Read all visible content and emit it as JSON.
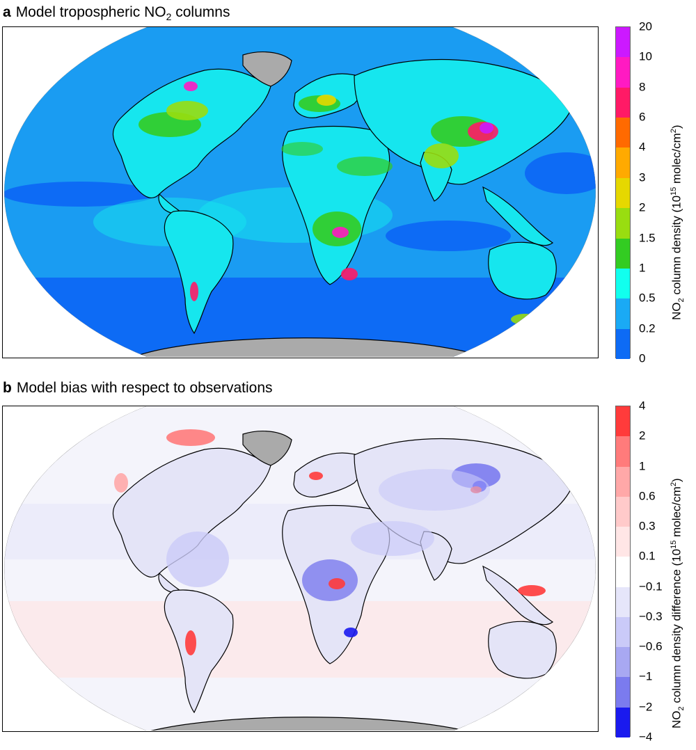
{
  "panel_a": {
    "letter": "a",
    "title": "Model tropospheric NO",
    "title_sub": "2",
    "title_tail": " columns",
    "colorbar": {
      "ticks": [
        "20",
        "10",
        "8",
        "6",
        "4",
        "3",
        "2",
        "1.5",
        "1",
        "0.5",
        "0.2",
        "0"
      ],
      "bin_colors": [
        "#cc19ff",
        "#ff1ac2",
        "#ff1a66",
        "#ff6a00",
        "#ffaa00",
        "#e6d800",
        "#99dd10",
        "#33cc22",
        "#11ffee",
        "#1aaaf5",
        "#0d6bf5"
      ],
      "label_pre": "NO",
      "label_sub": "2",
      "label_mid": " column density (10",
      "label_sup": "15",
      "label_mid2": " molec/cm",
      "label_sup2": "2",
      "label_end": ")"
    },
    "ocean_color": "#1a9cf2",
    "land_base_color": "#16e6ee"
  },
  "panel_b": {
    "letter": "b",
    "title": "Model bias with respect to observations",
    "colorbar": {
      "ticks": [
        "4",
        "2",
        "1",
        "0.6",
        "0.3",
        "0.1",
        "−0.1",
        "−0.3",
        "−0.6",
        "−1",
        "−2",
        "−4"
      ],
      "bin_colors": [
        "#ff3b3b",
        "#ff7b7b",
        "#ffa8a8",
        "#ffcaca",
        "#ffe6e6",
        "#ffffff",
        "#e6e6fa",
        "#cacaf8",
        "#a8a8f2",
        "#7b7bee",
        "#1a1aee"
      ],
      "label_pre": "NO",
      "label_sub": "2",
      "label_mid": " column density difference (10",
      "label_sup": "15",
      "label_mid2": " molec/cm",
      "label_sup2": "2",
      "label_end": ")"
    },
    "ocean_color": "#f4f4fb",
    "land_base_color": "#e4e4f7"
  },
  "missing_data_color": "#aaaaaa"
}
